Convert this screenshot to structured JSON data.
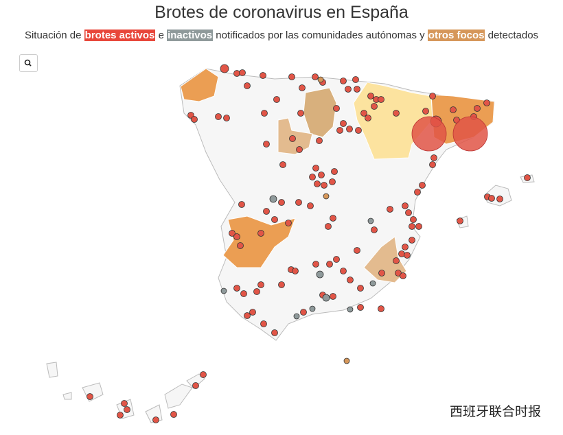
{
  "header": {
    "title": "Brotes de coronavirus en España",
    "subtitle": {
      "lead": "Situación de",
      "active": "brotes activos",
      "join1": "e",
      "inactive": "inactivos",
      "middle": "notificados por las comunidades autónomas y",
      "other": "otros focos",
      "tail": "detectados"
    }
  },
  "watermark": "西班牙联合时报"
}
